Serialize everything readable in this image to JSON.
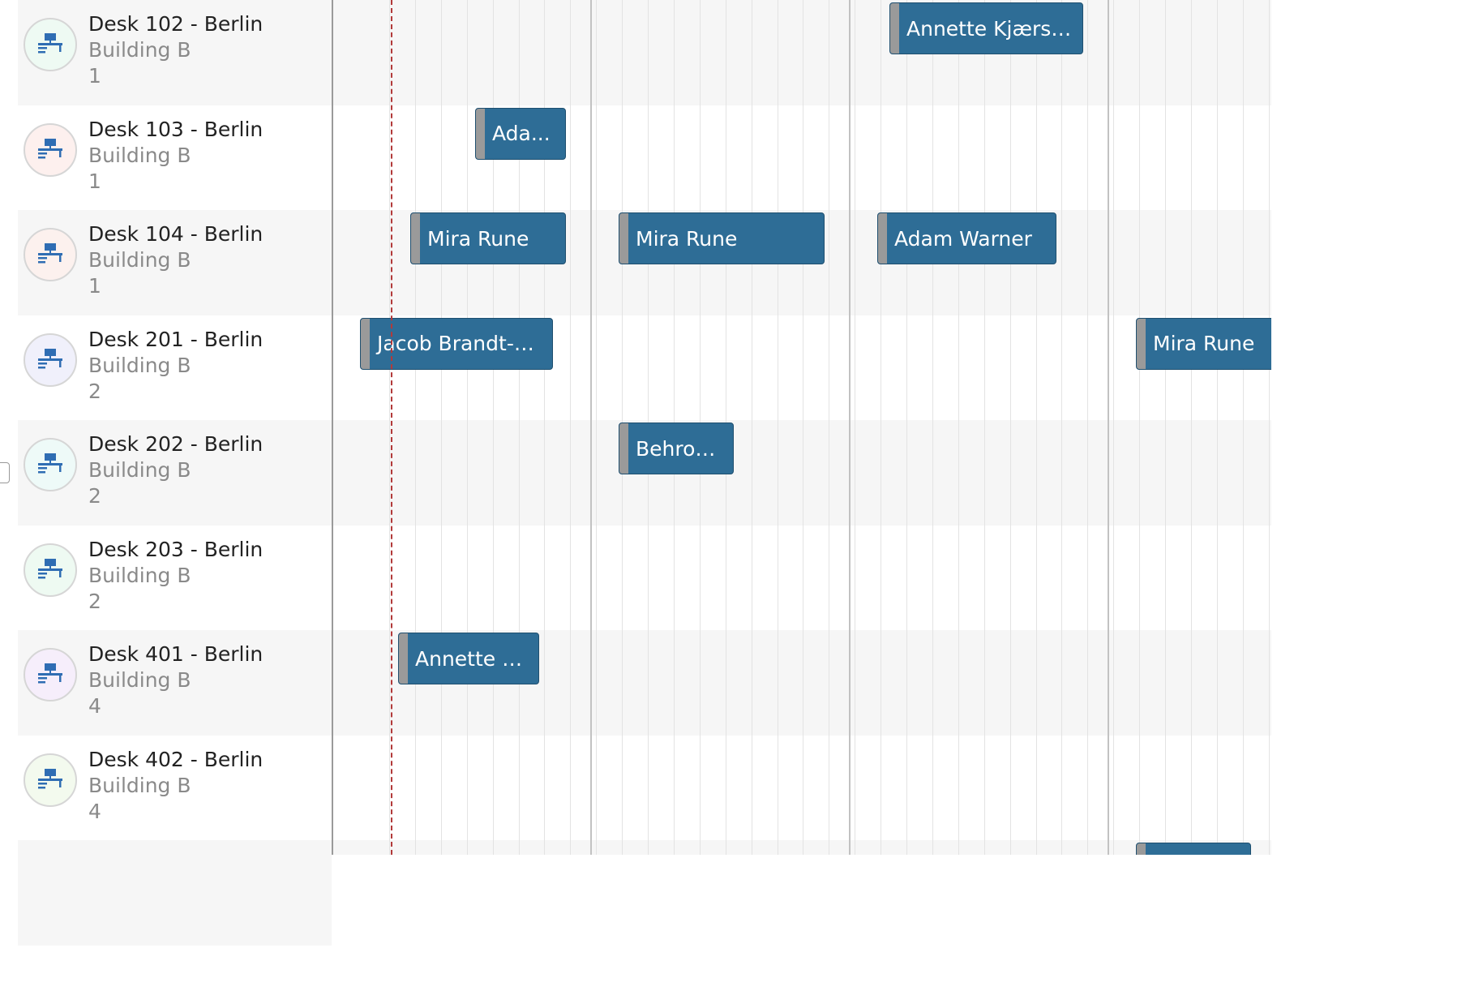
{
  "resources": [
    {
      "name": "Desk 102 - Berlin",
      "building": "Building B",
      "floor": "1",
      "avatar_tint": "#eefaf3"
    },
    {
      "name": "Desk 103 - Berlin",
      "building": "Building B",
      "floor": "1",
      "avatar_tint": "#fdf0ee"
    },
    {
      "name": "Desk 104 - Berlin",
      "building": "Building B",
      "floor": "1",
      "avatar_tint": "#fcf1ee"
    },
    {
      "name": "Desk 201 - Berlin",
      "building": "Building B",
      "floor": "2",
      "avatar_tint": "#f0f0fb"
    },
    {
      "name": "Desk 202 - Berlin",
      "building": "Building B",
      "floor": "2",
      "avatar_tint": "#eefaf8"
    },
    {
      "name": "Desk 203 - Berlin",
      "building": "Building B",
      "floor": "2",
      "avatar_tint": "#eefaf2"
    },
    {
      "name": "Desk 401 - Berlin",
      "building": "Building B",
      "floor": "4",
      "avatar_tint": "#f6eefb"
    },
    {
      "name": "Desk 402 - Berlin",
      "building": "Building B",
      "floor": "4",
      "avatar_tint": "#f3faee"
    }
  ],
  "events": [
    {
      "row": 0,
      "label": "Annette Kjærsg..."
    },
    {
      "row": 1,
      "label": "Ada..."
    },
    {
      "row": 2,
      "label": "Mira Rune"
    },
    {
      "row": 2,
      "label": "Mira Rune"
    },
    {
      "row": 2,
      "label": "Adam Warner"
    },
    {
      "row": 3,
      "label": "Jacob Brandt-M..."
    },
    {
      "row": 3,
      "label": "Mira Rune"
    },
    {
      "row": 4,
      "label": "Behrou..."
    },
    {
      "row": 6,
      "label": "Annette Kj..."
    },
    {
      "row": 8,
      "label": ""
    }
  ],
  "colors": {
    "event_fill": "#2e6d96",
    "event_handle": "#9a9a9a",
    "now_marker": "#b23a3a",
    "desk_icon": "#2f6db3"
  },
  "icons": {
    "resource_avatar": "desk-workstation-icon"
  }
}
